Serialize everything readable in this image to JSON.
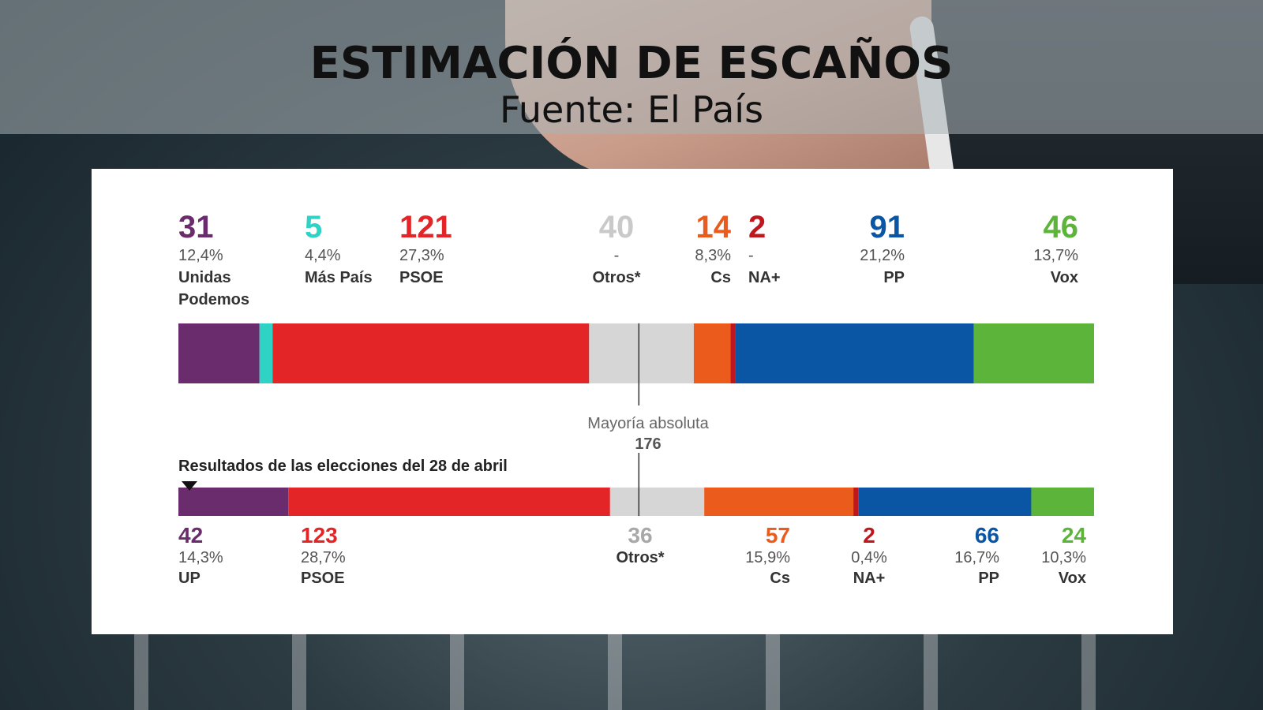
{
  "title": "ESTIMACIÓN DE ESCAÑOS",
  "subtitle": "Fuente: El País",
  "majority": {
    "label": "Mayoría absoluta",
    "value": 176
  },
  "previous_title": "Resultados de las elecciones del 28 de abril",
  "chart_data": [
    {
      "type": "bar",
      "stacked": true,
      "orientation": "horizontal",
      "categories": [
        "Unidas Podemos",
        "Más País",
        "PSOE",
        "Otros*",
        "Cs",
        "NA+",
        "PP",
        "Vox"
      ],
      "seats": [
        31,
        5,
        121,
        40,
        14,
        2,
        91,
        46
      ],
      "percent_labels": [
        "12,4%",
        "4,4%",
        "27,3%",
        "-",
        "8,3%",
        "-",
        "21,2%",
        "13,7%"
      ],
      "colors": [
        "#6b2c6e",
        "#2ed3c5",
        "#e32527",
        "#d6d6d6",
        "#ea5b1c",
        "#c0161d",
        "#0b55a5",
        "#5cb43b"
      ],
      "total": 350,
      "majority_line": 176
    },
    {
      "type": "bar",
      "stacked": true,
      "orientation": "horizontal",
      "categories": [
        "UP",
        "PSOE",
        "Otros*",
        "Cs",
        "NA+",
        "PP",
        "Vox"
      ],
      "seats": [
        42,
        123,
        36,
        57,
        2,
        66,
        24
      ],
      "percent_labels": [
        "14,3%",
        "28,7%",
        "",
        "15,9%",
        "0,4%",
        "16,7%",
        "10,3%"
      ],
      "colors": [
        "#6b2c6e",
        "#e32527",
        "#d6d6d6",
        "#ea5b1c",
        "#c0161d",
        "#0b55a5",
        "#5cb43b"
      ],
      "total": 350,
      "majority_line": 176
    }
  ]
}
